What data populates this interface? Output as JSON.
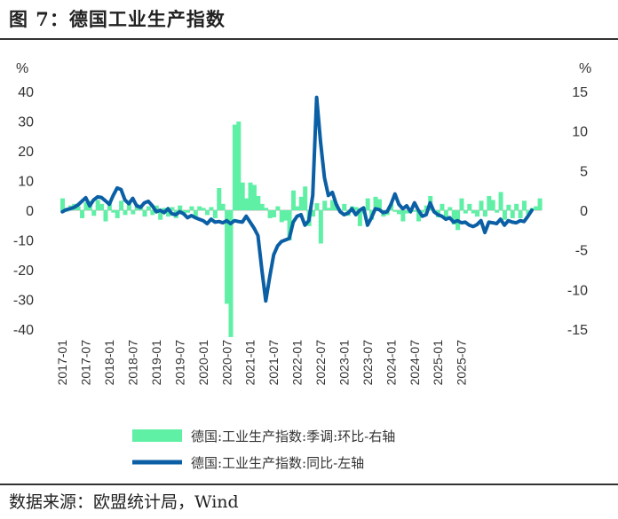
{
  "figure": {
    "title": "图 7：德国工业生产指数",
    "source": "数据来源：欧盟统计局，Wind"
  },
  "chart_data": {
    "type": "line",
    "title": "图 7：德国工业生产指数",
    "left_axis": {
      "unit": "%",
      "ylim": [
        -40,
        40
      ],
      "ticks": [
        40,
        30,
        20,
        10,
        0,
        -10,
        -20,
        -30,
        -40
      ]
    },
    "right_axis": {
      "unit": "%",
      "ylim": [
        -15,
        15
      ],
      "ticks": [
        15,
        10,
        5,
        0,
        -5,
        -10,
        -15
      ]
    },
    "x_range": [
      "2017-01",
      "2025-07"
    ],
    "x_tick_labels": [
      "2017-01",
      "2017-07",
      "2018-01",
      "2018-07",
      "2019-01",
      "2019-07",
      "2020-01",
      "2020-07",
      "2021-01",
      "2021-07",
      "2022-01",
      "2022-07",
      "2023-01",
      "2023-07",
      "2024-01",
      "2024-07",
      "2025-01",
      "2025-07"
    ],
    "grid": false,
    "legend_position": "bottom",
    "series": [
      {
        "name": "德国:工业生产指数:季调:环比-右轴",
        "type": "area",
        "axis": "right",
        "color": "#5ff0a6",
        "start": "2017-01",
        "values": [
          1.5,
          -0.2,
          0.6,
          0.8,
          0.5,
          -1.0,
          1.0,
          1.2,
          -0.7,
          1.3,
          0.8,
          -1.4,
          1.2,
          -0.3,
          -1.0,
          1.2,
          -0.6,
          1.0,
          -0.5,
          0.8,
          0.4,
          -0.8,
          0.5,
          -0.6,
          0.6,
          -1.2,
          0.3,
          -0.8,
          0.4,
          -1.0,
          0.6,
          -0.4,
          -0.3,
          0.5,
          -0.8,
          0.5,
          0.3,
          -0.6,
          0.4,
          -1.0,
          2.8,
          0.8,
          -11.8,
          -16.0,
          10.8,
          11.2,
          3.5,
          1.5,
          3.5,
          3.2,
          1.8,
          0.8,
          0.3,
          -1.0,
          -0.9,
          0.5,
          -1.5,
          -1.3,
          -3.8,
          2.5,
          0.5,
          1.7,
          3.0,
          -2.0,
          -0.8,
          0.9,
          -4.2,
          1.2,
          0.3,
          1.3,
          0.8,
          -0.2,
          0.8,
          -0.7,
          0.5,
          0.4,
          -2.0,
          -0.4,
          1.5,
          -1.2,
          1.7,
          1.4,
          -0.8,
          -0.6,
          0.8,
          -0.2,
          -0.5,
          -1.4,
          -0.4,
          0.2,
          -0.2,
          -1.4,
          -0.3,
          0.6,
          1.8,
          -0.2,
          -0.9,
          0.8,
          -1.2,
          0.4,
          -1.8,
          -2.5,
          1.5,
          -0.4,
          0.8,
          -0.4,
          -0.8,
          1.2,
          -0.8,
          1.8,
          1.3,
          -0.3,
          2.3,
          -1.2,
          0.7,
          -1.0,
          0.8,
          -1.0,
          1.2,
          -0.5,
          0.3,
          0.5,
          1.5
        ]
      },
      {
        "name": "德国:工业生产指数:同比-左轴",
        "type": "line",
        "axis": "left",
        "color": "#0b5fa5",
        "start": "2017-01",
        "values": [
          -0.5,
          0.2,
          0.5,
          1.0,
          1.8,
          3.0,
          4.2,
          1.5,
          3.5,
          4.5,
          4.3,
          3.2,
          2.0,
          5.0,
          7.5,
          7.0,
          3.5,
          2.2,
          4.0,
          1.5,
          1.0,
          2.5,
          3.0,
          1.5,
          -0.5,
          0.0,
          -0.8,
          0.5,
          -1.2,
          -1.5,
          -0.5,
          -1.2,
          -2.5,
          -1.8,
          -2.5,
          -3.0,
          -3.5,
          -4.5,
          -3.0,
          -4.0,
          -3.8,
          -4.2,
          -3.5,
          -4.5,
          -3.5,
          -3.8,
          -4.0,
          -2.0,
          -4.0,
          -6.0,
          -8.5,
          -20.0,
          -30.5,
          -22.5,
          -15.0,
          -12.0,
          -10.5,
          -10.0,
          -9.5,
          -4.0,
          -2.0,
          -1.5,
          -5.0,
          -3.5,
          5.0,
          38.0,
          23.0,
          11.0,
          5.0,
          6.0,
          2.0,
          -0.5,
          -1.5,
          -1.0,
          0.5,
          -1.5,
          0.0,
          0.8,
          -5.0,
          -2.5,
          0.5,
          0.2,
          -0.8,
          -0.5,
          2.0,
          5.5,
          2.0,
          0.5,
          1.5,
          -0.5,
          2.5,
          0.0,
          -2.0,
          -1.5,
          2.5,
          -0.5,
          -1.5,
          -2.0,
          -3.0,
          -2.5,
          -4.0,
          -3.5,
          -4.2,
          -4.0,
          -5.0,
          -5.5,
          -4.8,
          -3.5,
          -7.5,
          -4.0,
          -4.2,
          -4.5,
          -3.0,
          -5.0,
          -3.5,
          -4.0,
          -4.2,
          -3.5,
          -3.8,
          -2.0,
          0.0
        ]
      }
    ]
  }
}
